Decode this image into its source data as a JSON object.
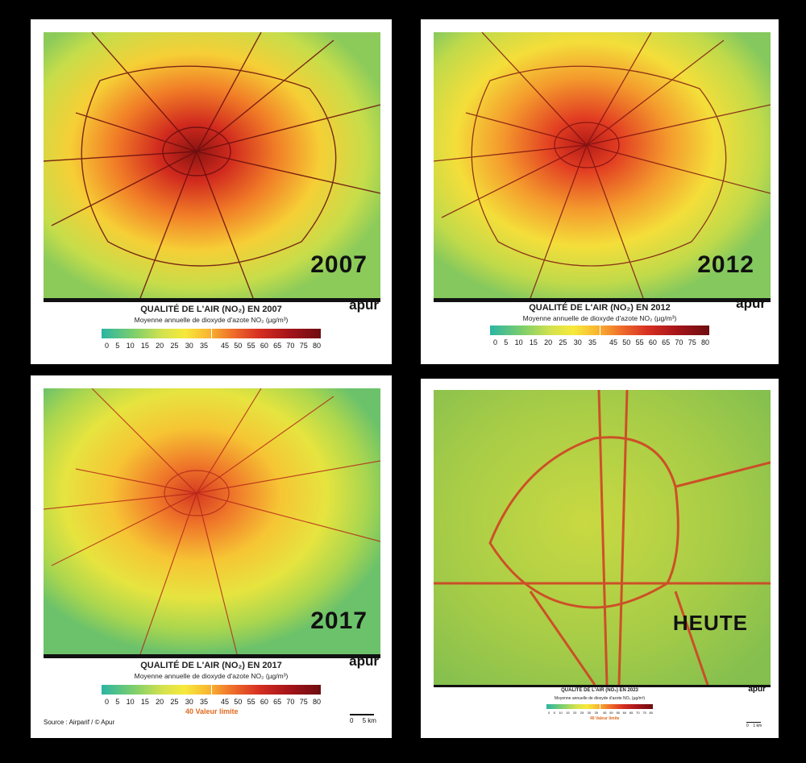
{
  "panels": [
    {
      "id": "p2007",
      "year": "2007",
      "title": "QUALITÉ DE L'AIR (NO₂) EN 2007",
      "subtitle": "Moyenne annuelle de dioxyde d'azote NO₂ (µg/m³)",
      "logo": "apur",
      "limit_label": "",
      "source": "",
      "scalebar": ""
    },
    {
      "id": "p2012",
      "year": "2012",
      "title": "QUALITÉ DE L'AIR (NO₂) EN 2012",
      "subtitle": "Moyenne annuelle de dioxyde d'azote NO₂ (µg/m³)",
      "logo": "apur",
      "limit_label": "",
      "source": "",
      "scalebar": ""
    },
    {
      "id": "p2017",
      "year": "2017",
      "title": "QUALITÉ DE L'AIR (NO₂) EN 2017",
      "subtitle": "Moyenne annuelle de dioxyde d'azote NO₂ (µg/m³)",
      "logo": "apur",
      "limit_label": "40 Valeur limite",
      "source": "Source : Airparif / © Apur",
      "scalebar": "0     5 km"
    },
    {
      "id": "pheute",
      "year": "HEUTE",
      "title": "QUALITÉ DE L'AIR (NO₂) EN 2023",
      "subtitle": "Moyenne annuelle de dioxyde d'azote NO₂ (µg/m³)",
      "logo": "apur",
      "limit_label": "40 Valeur limite",
      "source": "",
      "scalebar": "0    1 km"
    }
  ],
  "legend": {
    "ticks_left": [
      "0",
      "5",
      "10",
      "15",
      "20",
      "25",
      "30",
      "35"
    ],
    "ticks_right": [
      "45",
      "50",
      "55",
      "60",
      "65",
      "70",
      "75",
      "80"
    ],
    "colors": [
      "#2bb5a3",
      "#7fcf6b",
      "#d5e24d",
      "#f7e93b",
      "#f8b531",
      "#ef6c2a",
      "#d62f22",
      "#a7151a",
      "#6e0d10"
    ]
  }
}
